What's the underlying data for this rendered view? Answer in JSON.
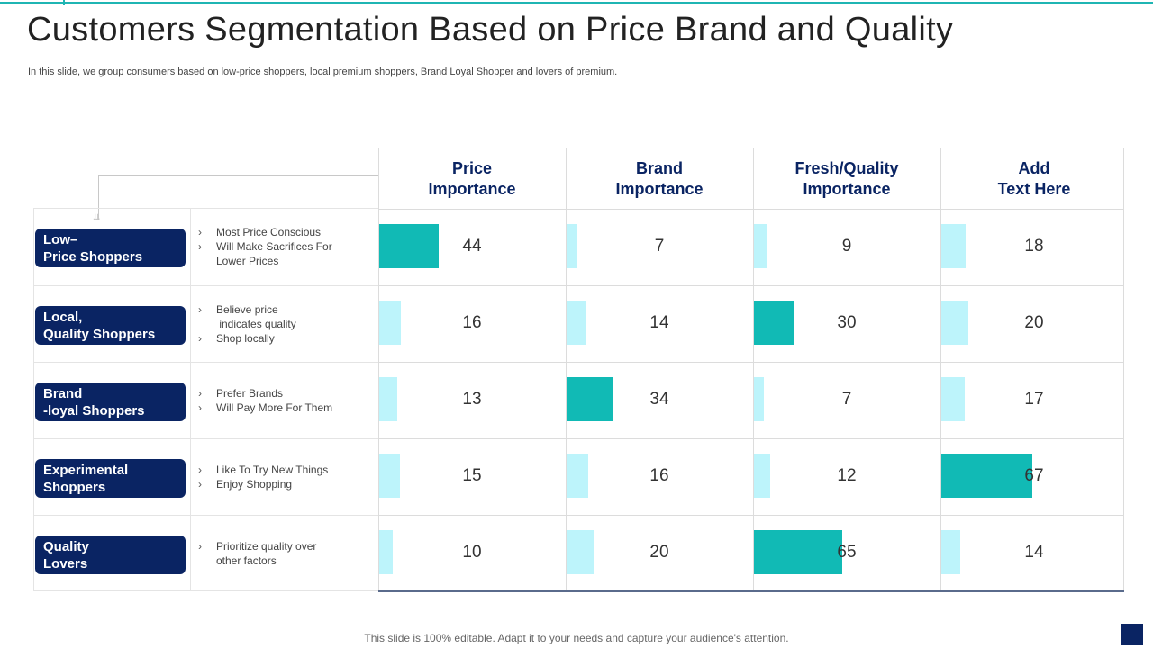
{
  "title": "Customers Segmentation Based on Price Brand and Quality",
  "subtitle": "In this slide, we group consumers based on low-price shoppers, local premium shoppers, Brand Loyal Shopper and lovers of premium.",
  "columns": [
    "Price\nImportance",
    "Brand\nImportance",
    "Fresh/Quality\nImportance",
    "Add\nText Here"
  ],
  "segments": [
    {
      "label": "Low–\nPrice Shoppers",
      "bullets": [
        {
          "text": "Most Price Conscious",
          "bullet": true
        },
        {
          "text": "Will Make Sacrifices For",
          "bullet": true
        },
        {
          "text": "Lower Prices",
          "bullet": false
        }
      ],
      "values": [
        44,
        7,
        9,
        18
      ]
    },
    {
      "label": "Local,\nQuality Shoppers",
      "bullets": [
        {
          "text": "Believe price",
          "bullet": true
        },
        {
          "text": " indicates quality",
          "bullet": false
        },
        {
          "text": "Shop locally",
          "bullet": true
        }
      ],
      "values": [
        16,
        14,
        30,
        20
      ]
    },
    {
      "label": "Brand\n-loyal Shoppers",
      "bullets": [
        {
          "text": "Prefer Brands",
          "bullet": true
        },
        {
          "text": "Will Pay More For Them",
          "bullet": true
        }
      ],
      "values": [
        13,
        34,
        7,
        17
      ]
    },
    {
      "label": "Experimental\nShoppers",
      "bullets": [
        {
          "text": "Like To Try New Things",
          "bullet": true
        },
        {
          "text": "Enjoy Shopping",
          "bullet": true
        }
      ],
      "values": [
        15,
        16,
        12,
        67
      ]
    },
    {
      "label": "Quality\nLovers",
      "bullets": [
        {
          "text": "Prioritize quality over",
          "bullet": true
        },
        {
          "text": "other factors",
          "bullet": false
        }
      ],
      "values": [
        10,
        20,
        65,
        14
      ]
    }
  ],
  "colors": {
    "navy": "#0a2463",
    "highlight_bar": "#11bab5",
    "normal_bar": "#bdf4fb",
    "accent_line": "#1fb5b3"
  },
  "footer": "This slide is 100% editable. Adapt it to your needs and capture your audience's attention."
}
